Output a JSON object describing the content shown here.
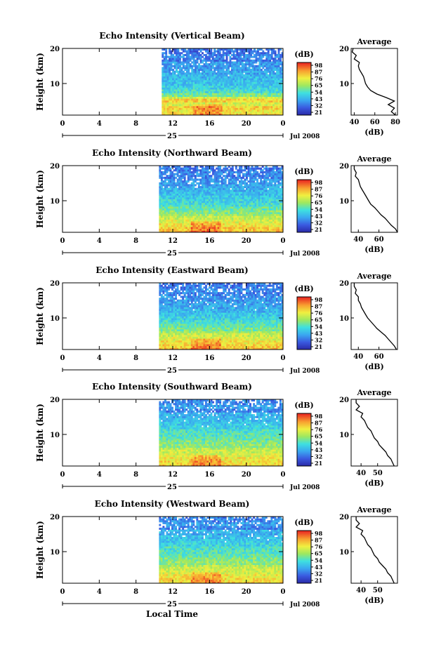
{
  "x_axis_title": "Local Time",
  "chart_data": [
    {
      "type": "heatmap",
      "title": "Echo Intensity (Vertical Beam)",
      "ylabel": "Height (km)",
      "xticks": [
        "0",
        "4",
        "8",
        "12",
        "16",
        "20",
        "0"
      ],
      "date_day": "25",
      "date_month": "Jul 2008",
      "yticks": [
        "20",
        "10"
      ],
      "ylim": [
        1,
        20
      ],
      "xlim": [
        0,
        24
      ],
      "data_start_hour": 10.8,
      "colorbar_label": "(dB)",
      "colorbar_ticks": [
        "98",
        "87",
        "76",
        "65",
        "54",
        "43",
        "32",
        "21"
      ],
      "vmin": 21,
      "vmax": 98,
      "profile": {
        "title": "Average",
        "xticks": [
          "40",
          "60",
          "80"
        ],
        "xlabel": "(dB)",
        "yticks": [
          "20",
          "10"
        ],
        "xlim": [
          37,
          82
        ],
        "heights": [
          1,
          2,
          3,
          4,
          5,
          6,
          7,
          8,
          9,
          10,
          11,
          12,
          13,
          14,
          15,
          16,
          17,
          18,
          19,
          20
        ],
        "values": [
          80,
          76,
          79,
          73,
          79,
          71,
          62,
          56,
          53,
          51,
          50,
          49,
          47,
          45,
          44,
          45,
          40,
          42,
          38,
          39
        ]
      }
    },
    {
      "type": "heatmap",
      "title": "Echo Intensity (Northward Beam)",
      "ylabel": "Height (km)",
      "xticks": [
        "0",
        "4",
        "8",
        "12",
        "16",
        "20",
        "0"
      ],
      "date_day": "25",
      "date_month": "Jul 2008",
      "yticks": [
        "20",
        "10"
      ],
      "ylim": [
        1,
        20
      ],
      "xlim": [
        0,
        24
      ],
      "data_start_hour": 10.5,
      "colorbar_label": "(dB)",
      "colorbar_ticks": [
        "98",
        "87",
        "76",
        "65",
        "54",
        "43",
        "32",
        "21"
      ],
      "vmin": 21,
      "vmax": 98,
      "profile": {
        "title": "Average",
        "xticks": [
          "40",
          "60"
        ],
        "xlabel": "(dB)",
        "yticks": [
          "20",
          "10"
        ],
        "xlim": [
          33,
          78
        ],
        "heights": [
          1,
          2,
          3,
          4,
          5,
          6,
          7,
          8,
          9,
          10,
          11,
          12,
          13,
          14,
          15,
          16,
          17,
          18,
          19,
          20
        ],
        "values": [
          78,
          76,
          72,
          69,
          66,
          62,
          59,
          56,
          52,
          50,
          48,
          46,
          44,
          42,
          41,
          40,
          37,
          38,
          36,
          36
        ]
      }
    },
    {
      "type": "heatmap",
      "title": "Echo Intensity (Eastward Beam)",
      "ylabel": "Height (km)",
      "xticks": [
        "0",
        "4",
        "8",
        "12",
        "16",
        "20",
        "0"
      ],
      "date_day": "25",
      "date_month": "Jul 2008",
      "yticks": [
        "20",
        "10"
      ],
      "ylim": [
        1,
        20
      ],
      "xlim": [
        0,
        24
      ],
      "data_start_hour": 10.5,
      "colorbar_label": "(dB)",
      "colorbar_ticks": [
        "98",
        "87",
        "76",
        "65",
        "54",
        "43",
        "32",
        "21"
      ],
      "vmin": 21,
      "vmax": 98,
      "profile": {
        "title": "Average",
        "xticks": [
          "40",
          "60"
        ],
        "xlabel": "(dB)",
        "yticks": [
          "20",
          "10"
        ],
        "xlim": [
          33,
          78
        ],
        "heights": [
          1,
          2,
          3,
          4,
          5,
          6,
          7,
          8,
          9,
          10,
          11,
          12,
          13,
          14,
          15,
          16,
          17,
          18,
          19,
          20
        ],
        "values": [
          77,
          75,
          72,
          69,
          66,
          62,
          58,
          55,
          52,
          49,
          47,
          45,
          43,
          42,
          40,
          40,
          37,
          38,
          36,
          36
        ]
      }
    },
    {
      "type": "heatmap",
      "title": "Echo Intensity (Southward Beam)",
      "ylabel": "Height (km)",
      "xticks": [
        "0",
        "4",
        "8",
        "12",
        "16",
        "20",
        "0"
      ],
      "date_day": "25",
      "date_month": "Jul 2008",
      "yticks": [
        "20",
        "10"
      ],
      "ylim": [
        1,
        20
      ],
      "xlim": [
        0,
        24
      ],
      "data_start_hour": 10.5,
      "colorbar_label": "(dB)",
      "colorbar_ticks": [
        "98",
        "87",
        "76",
        "65",
        "54",
        "43",
        "32",
        "21"
      ],
      "vmin": 21,
      "vmax": 98,
      "profile": {
        "title": "Average",
        "xticks": [
          "40",
          "50"
        ],
        "xlabel": "(dB)",
        "yticks": [
          "20",
          "10"
        ],
        "xlim": [
          34,
          62
        ],
        "heights": [
          1,
          2,
          3,
          4,
          5,
          6,
          7,
          8,
          9,
          10,
          11,
          12,
          13,
          14,
          15,
          16,
          17,
          18,
          19,
          20
        ],
        "values": [
          60,
          59,
          58,
          56,
          55,
          53,
          51,
          50,
          48,
          47,
          46,
          44,
          43,
          42,
          40,
          41,
          37,
          39,
          37,
          37
        ]
      }
    },
    {
      "type": "heatmap",
      "title": "Echo Intensity (Westward Beam)",
      "ylabel": "Height (km)",
      "xticks": [
        "0",
        "4",
        "8",
        "12",
        "16",
        "20",
        "0"
      ],
      "date_day": "25",
      "date_month": "Jul 2008",
      "yticks": [
        "20",
        "10"
      ],
      "ylim": [
        1,
        20
      ],
      "xlim": [
        0,
        24
      ],
      "data_start_hour": 10.5,
      "colorbar_label": "(dB)",
      "colorbar_ticks": [
        "98",
        "87",
        "76",
        "65",
        "54",
        "43",
        "32",
        "21"
      ],
      "vmin": 21,
      "vmax": 98,
      "profile": {
        "title": "Average",
        "xticks": [
          "40",
          "50"
        ],
        "xlabel": "(dB)",
        "yticks": [
          "20",
          "10"
        ],
        "xlim": [
          34,
          62
        ],
        "heights": [
          1,
          2,
          3,
          4,
          5,
          6,
          7,
          8,
          9,
          10,
          11,
          12,
          13,
          14,
          15,
          16,
          17,
          18,
          19,
          20
        ],
        "values": [
          60,
          59,
          58,
          56,
          55,
          53,
          51,
          50,
          48,
          47,
          46,
          44,
          43,
          42,
          40,
          41,
          37,
          39,
          37,
          37
        ]
      }
    }
  ]
}
